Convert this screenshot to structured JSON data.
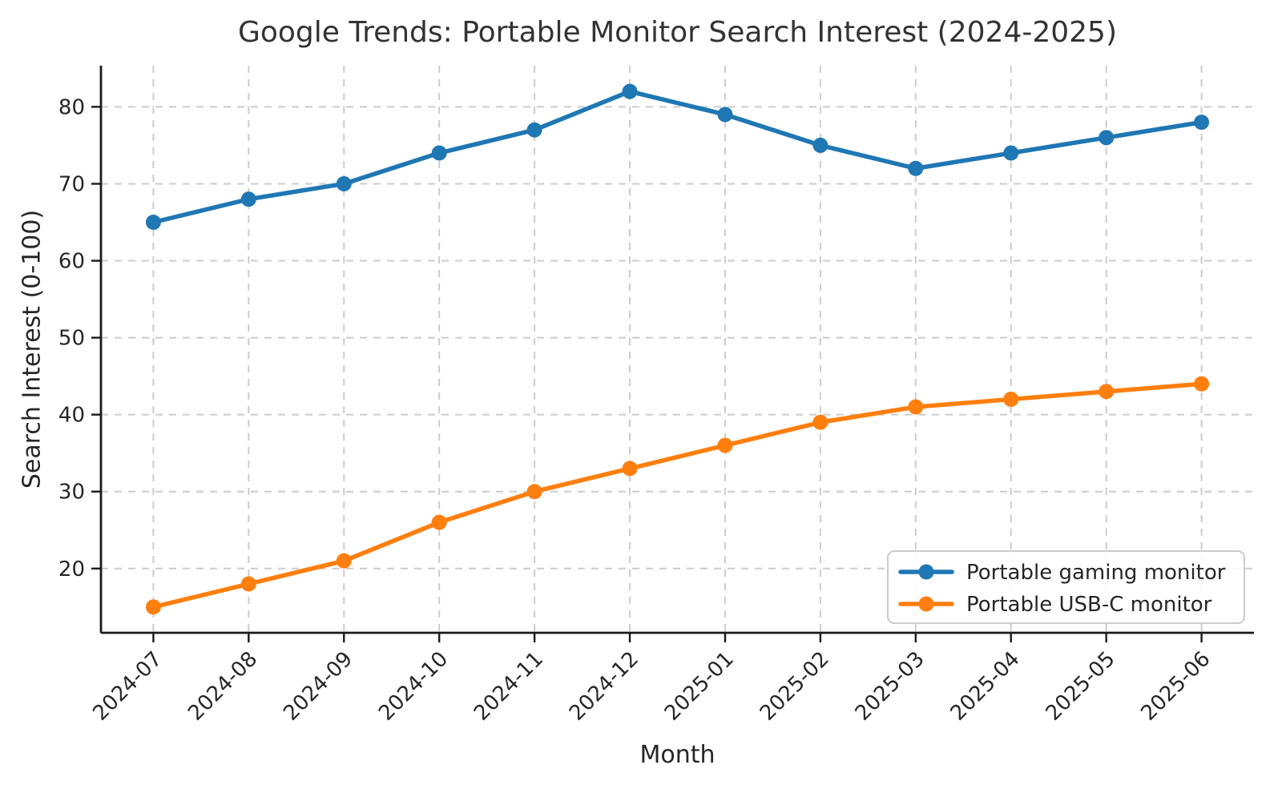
{
  "figure": {
    "background": "#ffffff"
  },
  "chart_data": {
    "type": "line",
    "title": "Google Trends: Portable Monitor Search Interest (2024-2025)",
    "xlabel": "Month",
    "ylabel": "Search Interest (0-100)",
    "categories": [
      "2024-07",
      "2024-08",
      "2024-09",
      "2024-10",
      "2024-11",
      "2024-12",
      "2025-01",
      "2025-02",
      "2025-03",
      "2025-04",
      "2025-05",
      "2025-06"
    ],
    "series": [
      {
        "name": "Portable gaming monitor",
        "color": "#1f77b4",
        "values": [
          65,
          68,
          70,
          74,
          77,
          82,
          79,
          75,
          72,
          74,
          76,
          78
        ]
      },
      {
        "name": "Portable USB-C monitor",
        "color": "#ff7f0e",
        "values": [
          15,
          18,
          21,
          26,
          30,
          33,
          36,
          39,
          41,
          42,
          43,
          44
        ]
      }
    ],
    "yticks": [
      20,
      30,
      40,
      50,
      60,
      70,
      80
    ],
    "ylim": [
      11.65,
      85.35
    ],
    "xlim": [
      -0.55,
      11.55
    ],
    "grid": {
      "show": true,
      "style": "dashed",
      "color": "#cccccc"
    },
    "legend": {
      "position": "lower-right",
      "entries": [
        "Portable gaming monitor",
        "Portable USB-C monitor"
      ]
    },
    "marker": "circle",
    "axis_color": "#1a1a1a",
    "text_color": "#262626"
  }
}
